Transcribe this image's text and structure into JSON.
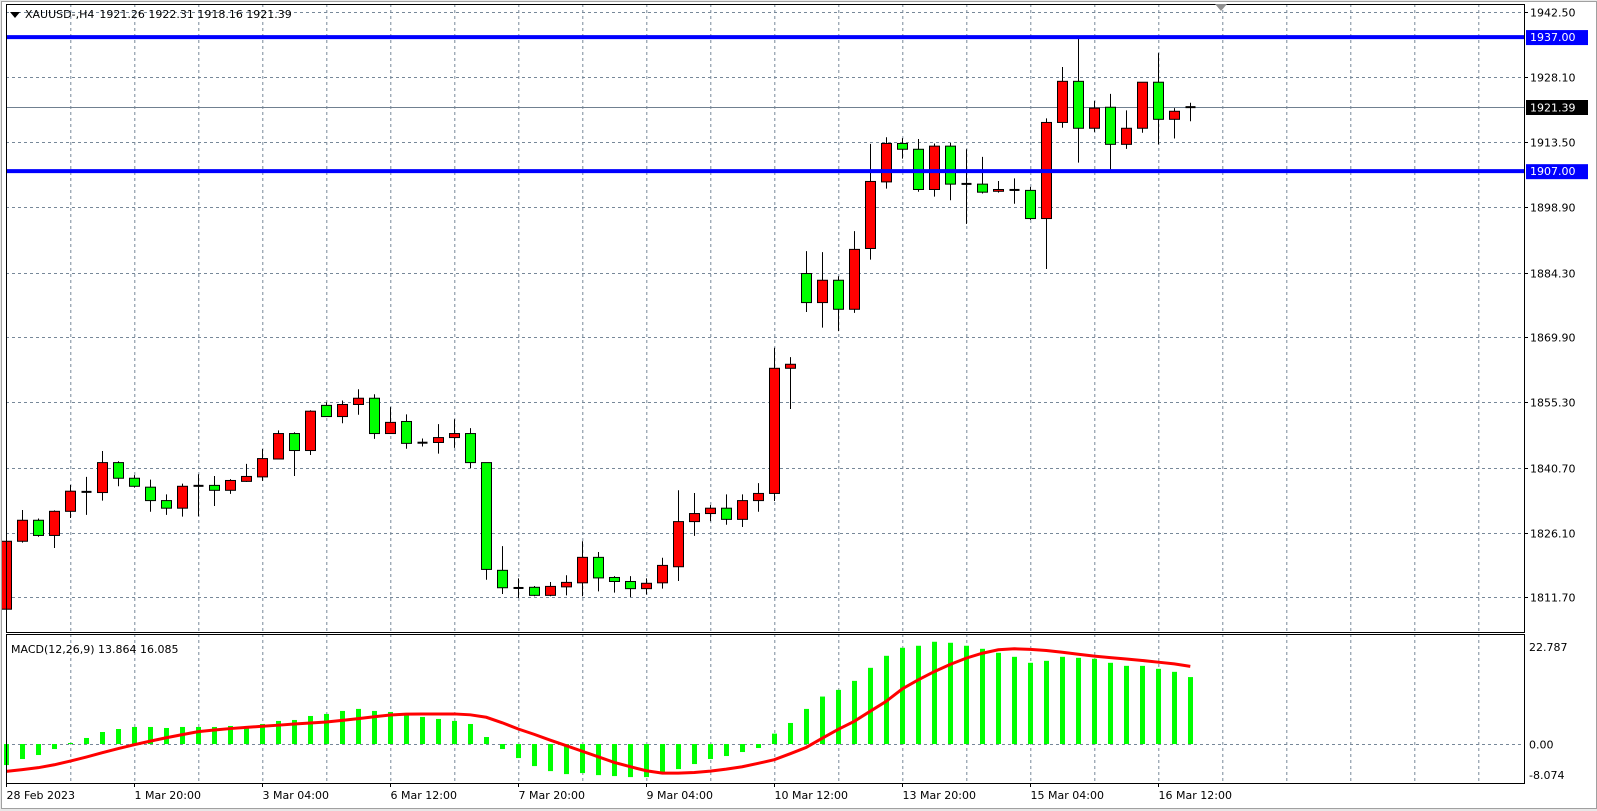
{
  "chart_data": [
    {
      "type": "candlestick",
      "title": "XAUUSD-,H4",
      "ohlc_label": "1921.26 1922.31 1918.16 1921.39",
      "ylim": [
        1803.9,
        1944.4
      ],
      "y_ticks": [
        "1942.50",
        "1928.10",
        "1913.50",
        "1898.90",
        "1884.30",
        "1869.90",
        "1855.30",
        "1840.70",
        "1826.10",
        "1811.70"
      ],
      "x_ticks": [
        {
          "label": "28 Feb 2023",
          "bar": 0
        },
        {
          "label": "1 Mar 20:00",
          "bar": 8
        },
        {
          "label": "3 Mar 04:00",
          "bar": 16
        },
        {
          "label": "6 Mar 12:00",
          "bar": 24
        },
        {
          "label": "7 Mar 20:00",
          "bar": 32
        },
        {
          "label": "9 Mar 04:00",
          "bar": 40
        },
        {
          "label": "10 Mar 12:00",
          "bar": 48
        },
        {
          "label": "13 Mar 20:00",
          "bar": 56
        },
        {
          "label": "15 Mar 04:00",
          "bar": 64
        },
        {
          "label": "16 Mar 12:00",
          "bar": 72
        }
      ],
      "grid": true,
      "bull_color": "#ff0000",
      "bear_color": "#00ff00",
      "ohlc": [
        [
          1809.0,
          1826.7,
          1807.0,
          1824.2
        ],
        [
          1824.2,
          1831.2,
          1823.9,
          1828.9
        ],
        [
          1828.9,
          1829.3,
          1825.2,
          1825.5
        ],
        [
          1825.5,
          1831.1,
          1822.7,
          1830.9
        ],
        [
          1830.9,
          1836.8,
          1829.4,
          1835.4
        ],
        [
          1835.2,
          1838.6,
          1830.1,
          1835.3
        ],
        [
          1835.1,
          1844.4,
          1833.3,
          1841.8
        ],
        [
          1841.8,
          1842.1,
          1836.5,
          1838.3
        ],
        [
          1838.3,
          1839.0,
          1836.2,
          1836.5
        ],
        [
          1836.3,
          1838.0,
          1830.8,
          1833.3
        ],
        [
          1833.3,
          1834.7,
          1830.1,
          1831.6
        ],
        [
          1831.6,
          1837.1,
          1829.7,
          1836.5
        ],
        [
          1836.6,
          1839.2,
          1829.8,
          1836.6
        ],
        [
          1836.7,
          1838.8,
          1832.1,
          1835.6
        ],
        [
          1835.6,
          1838.1,
          1834.8,
          1837.8
        ],
        [
          1837.6,
          1841.5,
          1837.5,
          1838.7
        ],
        [
          1838.6,
          1844.8,
          1837.7,
          1842.7
        ],
        [
          1842.6,
          1849.0,
          1842.6,
          1848.3
        ],
        [
          1848.3,
          1848.6,
          1838.8,
          1844.5
        ],
        [
          1844.5,
          1853.5,
          1843.5,
          1853.3
        ],
        [
          1854.6,
          1855.3,
          1852.1,
          1852.1
        ],
        [
          1852.1,
          1855.7,
          1850.6,
          1854.8
        ],
        [
          1854.8,
          1858.2,
          1852.5,
          1856.2
        ],
        [
          1856.2,
          1857.1,
          1847.1,
          1848.3
        ],
        [
          1848.3,
          1854.2,
          1848.3,
          1850.8
        ],
        [
          1851.0,
          1852.6,
          1844.9,
          1846.1
        ],
        [
          1846.2,
          1847.2,
          1845.4,
          1846.3
        ],
        [
          1846.3,
          1850.4,
          1843.8,
          1847.4
        ],
        [
          1847.4,
          1851.5,
          1845.1,
          1848.3
        ],
        [
          1848.3,
          1849.5,
          1840.6,
          1841.8
        ],
        [
          1841.8,
          1841.8,
          1815.6,
          1817.9
        ],
        [
          1817.7,
          1823.1,
          1812.4,
          1813.8
        ],
        [
          1813.8,
          1815.9,
          1811.5,
          1813.7
        ],
        [
          1813.9,
          1814.2,
          1811.9,
          1812.1
        ],
        [
          1812.1,
          1815.1,
          1811.9,
          1814.1
        ],
        [
          1814.0,
          1816.6,
          1812.1,
          1815.0
        ],
        [
          1814.9,
          1824.2,
          1811.9,
          1820.6
        ],
        [
          1820.6,
          1821.8,
          1813.0,
          1816.0
        ],
        [
          1816.1,
          1816.4,
          1812.7,
          1815.2
        ],
        [
          1815.2,
          1816.4,
          1811.7,
          1813.6
        ],
        [
          1813.6,
          1815.9,
          1812.3,
          1814.8
        ],
        [
          1814.9,
          1820.5,
          1813.6,
          1818.8
        ],
        [
          1818.5,
          1835.6,
          1815.3,
          1828.6
        ],
        [
          1828.6,
          1835.0,
          1825.4,
          1830.4
        ],
        [
          1830.4,
          1832.3,
          1828.7,
          1831.6
        ],
        [
          1831.6,
          1834.7,
          1827.9,
          1829.1
        ],
        [
          1829.1,
          1834.7,
          1827.4,
          1833.3
        ],
        [
          1833.3,
          1837.2,
          1830.8,
          1834.9
        ],
        [
          1834.9,
          1867.5,
          1833.2,
          1862.9
        ],
        [
          1862.9,
          1865.4,
          1853.8,
          1863.8
        ],
        [
          1884.1,
          1889.1,
          1875.5,
          1877.6
        ],
        [
          1877.6,
          1888.9,
          1872.0,
          1882.6
        ],
        [
          1882.6,
          1883.5,
          1871.2,
          1876.1
        ],
        [
          1876.1,
          1893.6,
          1875.3,
          1889.5
        ],
        [
          1889.7,
          1913.1,
          1887.2,
          1904.7
        ],
        [
          1904.6,
          1914.6,
          1903.1,
          1913.2
        ],
        [
          1913.2,
          1914.4,
          1909.8,
          1911.9
        ],
        [
          1911.9,
          1914.2,
          1902.4,
          1902.9
        ],
        [
          1902.9,
          1913.2,
          1901.3,
          1912.6
        ],
        [
          1912.6,
          1913.3,
          1900.5,
          1904.1
        ],
        [
          1904.1,
          1911.9,
          1895.2,
          1904.2
        ],
        [
          1904.1,
          1910.2,
          1902.0,
          1902.3
        ],
        [
          1902.5,
          1904.8,
          1902.2,
          1902.9
        ],
        [
          1902.8,
          1905.4,
          1899.7,
          1902.8
        ],
        [
          1902.7,
          1903.5,
          1896.1,
          1896.4
        ],
        [
          1896.4,
          1918.8,
          1885.1,
          1917.9
        ],
        [
          1917.9,
          1930.3,
          1916.7,
          1927.1
        ],
        [
          1927.1,
          1936.7,
          1908.9,
          1916.6
        ],
        [
          1916.6,
          1922.7,
          1915.8,
          1921.1
        ],
        [
          1921.3,
          1924.3,
          1907.4,
          1913.0
        ],
        [
          1913.0,
          1920.6,
          1912.0,
          1916.6
        ],
        [
          1916.6,
          1926.9,
          1915.6,
          1926.9
        ],
        [
          1926.9,
          1933.4,
          1913.0,
          1918.6
        ],
        [
          1918.6,
          1921.1,
          1914.3,
          1920.4
        ],
        [
          1921.26,
          1922.31,
          1918.16,
          1921.39
        ]
      ],
      "horizontal_lines": [
        {
          "price": 1937.0,
          "label": "1937.00",
          "color": "#0000ff"
        },
        {
          "price": 1907.0,
          "label": "1907.00",
          "color": "#0000ff"
        }
      ],
      "current_price": {
        "price": 1921.39,
        "label": "1921.39",
        "color": "#000000"
      }
    },
    {
      "type": "bar+line",
      "title": "MACD(12,26,9) 13.864 16.085",
      "ylim": [
        -8.074,
        22.787
      ],
      "y_ticks": [
        "22.787",
        "0.00",
        "-8.074"
      ],
      "histogram_color": "#00ff00",
      "signal_color": "#ff0000",
      "histogram": [
        -4.36,
        -3.11,
        -2.28,
        -1.04,
        0.21,
        1.25,
        2.49,
        3.11,
        3.53,
        3.53,
        3.32,
        3.53,
        3.53,
        3.53,
        3.74,
        3.5,
        4.15,
        4.78,
        4.98,
        5.81,
        6.23,
        6.85,
        7.27,
        6.85,
        6.64,
        5.95,
        5.61,
        5.19,
        4.78,
        4.15,
        1.45,
        -1.04,
        -2.91,
        -4.57,
        -5.61,
        -6.23,
        -6.02,
        -6.44,
        -6.64,
        -6.85,
        -6.85,
        -5.81,
        -5.19,
        -4.15,
        -3.11,
        -2.49,
        -1.66,
        -0.83,
        2.15,
        4.36,
        7.27,
        9.83,
        11.21,
        13.08,
        15.78,
        18.27,
        19.93,
        20.35,
        21.18,
        20.97,
        20.35,
        19.72,
        18.89,
        18.06,
        16.82,
        17.23,
        18.06,
        17.85,
        17.65,
        16.82,
        16.19,
        16.19,
        15.57,
        14.95,
        13.864
      ],
      "signal": [
        -5.67,
        -5.3,
        -4.9,
        -4.3,
        -3.53,
        -2.7,
        -1.8,
        -0.95,
        -0.14,
        0.6,
        1.3,
        1.95,
        2.56,
        2.9,
        3.2,
        3.45,
        3.67,
        3.9,
        4.15,
        4.35,
        4.57,
        4.9,
        5.25,
        5.65,
        6.02,
        6.2,
        6.23,
        6.23,
        6.23,
        6.05,
        5.54,
        4.4,
        3.11,
        2.0,
        0.8,
        -0.35,
        -1.5,
        -2.65,
        -3.81,
        -4.7,
        -5.54,
        -6.02,
        -6.02,
        -5.9,
        -5.61,
        -5.2,
        -4.71,
        -4.0,
        -3.25,
        -2.0,
        -0.69,
        1.2,
        3.04,
        4.71,
        6.8,
        8.86,
        11.42,
        13.3,
        15.0,
        16.5,
        17.79,
        18.8,
        19.52,
        19.72,
        19.6,
        19.38,
        19.0,
        18.6,
        18.2,
        17.9,
        17.6,
        17.3,
        16.95,
        16.6,
        16.085
      ]
    }
  ]
}
